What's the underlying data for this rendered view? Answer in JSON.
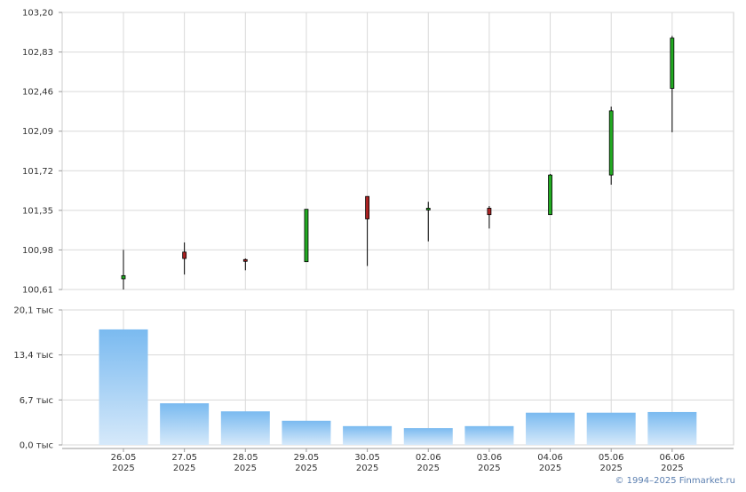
{
  "chart_data": {
    "type": "candlestick",
    "x_labels": [
      {
        "day": "26.05",
        "year": "2025"
      },
      {
        "day": "27.05",
        "year": "2025"
      },
      {
        "day": "28.05",
        "year": "2025"
      },
      {
        "day": "29.05",
        "year": "2025"
      },
      {
        "day": "30.05",
        "year": "2025"
      },
      {
        "day": "02.06",
        "year": "2025"
      },
      {
        "day": "03.06",
        "year": "2025"
      },
      {
        "day": "04.06",
        "year": "2025"
      },
      {
        "day": "05.06",
        "year": "2025"
      },
      {
        "day": "06.06",
        "year": "2025"
      }
    ],
    "price": {
      "ylim": [
        100.61,
        103.2
      ],
      "ticks": [
        "103,20",
        "102,83",
        "102,46",
        "102,09",
        "101,72",
        "101,35",
        "100,98",
        "100,61"
      ],
      "tick_values": [
        103.2,
        102.83,
        102.46,
        102.09,
        101.72,
        101.35,
        100.98,
        100.61
      ],
      "candles": [
        {
          "open": 100.71,
          "high": 100.98,
          "low": 100.61,
          "close": 100.74
        },
        {
          "open": 100.96,
          "high": 101.05,
          "low": 100.75,
          "close": 100.9
        },
        {
          "open": 100.89,
          "high": 100.9,
          "low": 100.79,
          "close": 100.88
        },
        {
          "open": 100.87,
          "high": 101.36,
          "low": 100.87,
          "close": 101.36
        },
        {
          "open": 101.48,
          "high": 101.48,
          "low": 100.83,
          "close": 101.27
        },
        {
          "open": 101.36,
          "high": 101.43,
          "low": 101.06,
          "close": 101.37
        },
        {
          "open": 101.37,
          "high": 101.39,
          "low": 101.18,
          "close": 101.31
        },
        {
          "open": 101.31,
          "high": 101.69,
          "low": 101.31,
          "close": 101.68
        },
        {
          "open": 101.68,
          "high": 102.32,
          "low": 101.59,
          "close": 102.28
        },
        {
          "open": 102.49,
          "high": 102.98,
          "low": 102.08,
          "close": 102.96
        }
      ],
      "up_color": "#22aa22",
      "down_color": "#aa2222"
    },
    "volume": {
      "ylim": [
        0,
        20.1
      ],
      "ticks": [
        "20,1 тыс",
        "13,4 тыс",
        "6,7 тыс",
        "0,0 тыс"
      ],
      "tick_values": [
        20.1,
        13.4,
        6.7,
        0
      ],
      "values": [
        17.2,
        6.2,
        5.0,
        3.6,
        2.8,
        2.5,
        2.8,
        4.8,
        4.8,
        4.9
      ],
      "bar_color_top": "#7abaf0",
      "bar_color_bottom": "#d6e9fa"
    }
  },
  "copyright": "© 1994–2025 Finmarket.ru"
}
